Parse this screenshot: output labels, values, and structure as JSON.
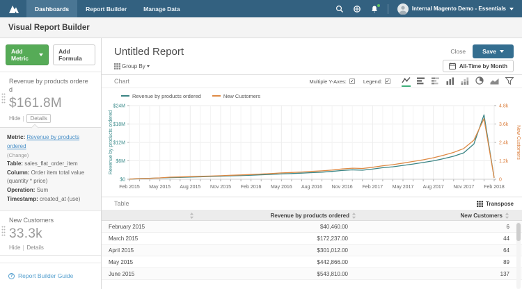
{
  "nav": {
    "items": [
      {
        "label": "Dashboards",
        "active": true
      },
      {
        "label": "Report Builder",
        "active": false
      },
      {
        "label": "Manage Data",
        "active": false
      }
    ],
    "account": "Internal Magento Demo - Essentials",
    "icons": [
      "logo",
      "search-icon",
      "globe-icon",
      "bell-icon",
      "avatar"
    ]
  },
  "page": {
    "title": "Visual Report Builder"
  },
  "sidebar": {
    "add_metric_label": "Add Metric",
    "add_formula_label": "Add Formula",
    "metrics": [
      {
        "title": "Revenue by products ordered",
        "value": "$161.8M",
        "hide_label": "Hide",
        "details_label": "Details"
      },
      {
        "title": "New Customers",
        "value": "33.3k",
        "hide_label": "Hide",
        "details_label": "Details"
      }
    ],
    "metric_details": {
      "metric_label": "Metric:",
      "metric_link": "Revenue by products ordered",
      "change_label": "(Change)",
      "table_label": "Table:",
      "table_value": "sales_flat_order_item",
      "column_label": "Column:",
      "column_value": "Order item total value (quantity * price)",
      "operation_label": "Operation:",
      "operation_value": "Sum",
      "timestamp_label": "Timestamp:",
      "timestamp_value": "created_at (use)"
    },
    "guide_label": "Report Builder Guide"
  },
  "report": {
    "title": "Untitled Report",
    "close_label": "Close",
    "save_label": "Save",
    "group_by_label": "Group By",
    "time_range_label": "All-Time by Month"
  },
  "chart_section": {
    "label": "Chart",
    "multiple_y_axes_label": "Multiple Y-Axes:",
    "multiple_y_axes_checked": true,
    "legend_label": "Legend:",
    "legend_checked": true,
    "chart_type_icons": [
      "line-chart-icon",
      "horizontal-bar-chart-icon",
      "stacked-horizontal-bar-chart-icon",
      "column-chart-icon",
      "stacked-column-chart-icon",
      "pie-chart-icon",
      "area-chart-icon",
      "funnel-chart-icon"
    ],
    "active_chart_type": "line"
  },
  "chart_data": {
    "type": "line",
    "x": [
      "Feb 2015",
      "Mar 2015",
      "Apr 2015",
      "May 2015",
      "Jun 2015",
      "Jul 2015",
      "Aug 2015",
      "Sep 2015",
      "Oct 2015",
      "Nov 2015",
      "Dec 2015",
      "Jan 2016",
      "Feb 2016",
      "Mar 2016",
      "Apr 2016",
      "May 2016",
      "Jun 2016",
      "Jul 2016",
      "Aug 2016",
      "Sep 2016",
      "Oct 2016",
      "Nov 2016",
      "Dec 2016",
      "Jan 2017",
      "Feb 2017",
      "Mar 2017",
      "Apr 2017",
      "May 2017",
      "Jun 2017",
      "Jul 2017",
      "Aug 2017",
      "Sep 2017",
      "Oct 2017",
      "Nov 2017",
      "Dec 2017",
      "Jan 2018",
      "Feb 2018"
    ],
    "x_tick_labels": [
      "Feb 2015",
      "May 2015",
      "Aug 2015",
      "Nov 2015",
      "Feb 2016",
      "May 2016",
      "Aug 2016",
      "Nov 2016",
      "Feb 2017",
      "May 2017",
      "Aug 2017",
      "Nov 2017",
      "Feb 2018"
    ],
    "series": [
      {
        "name": "Revenue by products ordered",
        "axis": "left",
        "color": "#3a8484",
        "unit": "$M",
        "values": [
          0.04,
          0.17,
          0.3,
          0.44,
          0.54,
          0.62,
          0.72,
          0.8,
          0.9,
          1.0,
          1.12,
          1.2,
          1.32,
          1.45,
          1.58,
          1.72,
          1.85,
          2.0,
          2.15,
          2.32,
          2.55,
          2.85,
          3.05,
          2.95,
          3.3,
          3.75,
          4.05,
          4.5,
          4.95,
          5.45,
          6.0,
          6.7,
          7.5,
          8.6,
          11.5,
          21.0,
          0.45
        ]
      },
      {
        "name": "New Customers",
        "axis": "right",
        "color": "#de8a45",
        "unit": "k",
        "values": [
          0.006,
          0.044,
          0.064,
          0.089,
          0.137,
          0.15,
          0.17,
          0.19,
          0.21,
          0.23,
          0.26,
          0.28,
          0.31,
          0.34,
          0.37,
          0.41,
          0.44,
          0.47,
          0.51,
          0.55,
          0.6,
          0.67,
          0.72,
          0.7,
          0.78,
          0.88,
          0.95,
          1.05,
          1.16,
          1.27,
          1.4,
          1.56,
          1.75,
          2.0,
          2.55,
          3.95,
          0.09
        ]
      }
    ],
    "left_axis": {
      "title": "Revenue by products ordered",
      "ticks": [
        "$0",
        "$6M",
        "$12M",
        "$18M",
        "$24M"
      ],
      "max": 24,
      "color": "#3a8a8a"
    },
    "right_axis": {
      "title": "New Customers",
      "ticks": [
        "0",
        "1.2k",
        "2.4k",
        "3.6k",
        "4.8k"
      ],
      "max": 4.8,
      "color": "#db7f3e"
    },
    "grid": true,
    "legend_position": "top-left"
  },
  "table_section": {
    "label": "Table",
    "transpose_label": "Transpose",
    "columns": [
      "",
      "Revenue by products ordered",
      "New Customers"
    ],
    "rows": [
      [
        "February 2015",
        "$40,460.00",
        "6"
      ],
      [
        "March 2015",
        "$172,237.00",
        "44"
      ],
      [
        "April 2015",
        "$301,012.00",
        "64"
      ],
      [
        "May 2015",
        "$442,866.00",
        "89"
      ],
      [
        "June 2015",
        "$543,810.00",
        "137"
      ]
    ]
  }
}
